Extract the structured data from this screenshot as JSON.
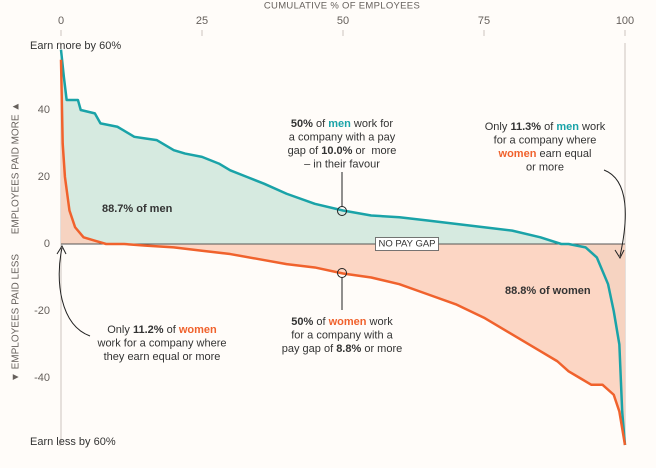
{
  "chart_data": {
    "type": "line",
    "x_label": "CUMULATIVE % OF EMPLOYEES",
    "y_label_up": "EMPLOYEES PAID MORE ▲",
    "y_label_down": "▼ EMPLOYEES PAID LESS",
    "xlim": [
      0,
      100
    ],
    "xticks": [
      0,
      25,
      50,
      75,
      100
    ],
    "ylim": [
      -60,
      60
    ],
    "yticks": [
      {
        "value": 60,
        "label": "Earn more by 60%"
      },
      40,
      20,
      0,
      -20,
      -40,
      {
        "value": -60,
        "label": "Earn less by 60%"
      }
    ],
    "zero_label": "NO PAY GAP",
    "series": [
      {
        "name": "men",
        "color": "#1aa3a8",
        "fill": "#cfe6dc",
        "x": [
          0,
          0.5,
          1,
          3,
          3.5,
          6,
          7,
          10,
          11,
          13,
          15,
          17,
          20,
          22,
          25,
          28,
          30,
          33,
          36,
          40,
          45,
          50,
          55,
          60,
          65,
          70,
          75,
          80,
          85,
          88.7,
          90,
          93,
          95,
          97,
          98,
          99,
          99.5,
          100
        ],
        "values": [
          58,
          50,
          43,
          43,
          40,
          39,
          36,
          35,
          34,
          32,
          31.5,
          31,
          28,
          27,
          26,
          24,
          22,
          20,
          18,
          15,
          12,
          10,
          8.5,
          8,
          7,
          6,
          5,
          4,
          2,
          0,
          0,
          -1,
          -4,
          -12,
          -20,
          -30,
          -50,
          -60
        ]
      },
      {
        "name": "women",
        "color": "#f0622d",
        "fill": "#fbcfbb",
        "x": [
          0,
          0.3,
          0.7,
          1.5,
          2.5,
          4,
          6,
          8,
          11.2,
          15,
          20,
          25,
          30,
          35,
          40,
          45,
          50,
          55,
          60,
          65,
          70,
          75,
          80,
          85,
          88,
          90,
          92,
          94,
          96,
          98,
          99,
          99.5,
          100
        ],
        "values": [
          55,
          30,
          20,
          10,
          5,
          2,
          1,
          0,
          0,
          -0.5,
          -1,
          -2,
          -3,
          -4.5,
          -6,
          -7,
          -8.8,
          -10,
          -12,
          -15,
          -18,
          -22,
          -27,
          -32,
          -35,
          -38,
          -40,
          -42,
          -42,
          -45,
          -50,
          -55,
          -60
        ]
      }
    ],
    "area_labels": [
      "88.7% of men",
      "88.8% of women"
    ],
    "annotations": [
      {
        "lines": [
          [
            "50%",
            " of ",
            "men",
            " work for"
          ],
          [
            "a company with a pay"
          ],
          [
            "gap of ",
            "10.0%",
            " or  more"
          ],
          [
            "– in their favour"
          ]
        ]
      },
      {
        "lines": [
          [
            "Only ",
            "11.3%",
            " of ",
            "men",
            " work"
          ],
          [
            "for a company where"
          ],
          [
            "women",
            " earn equal"
          ],
          [
            "or more"
          ]
        ]
      },
      {
        "lines": [
          [
            "Only ",
            "11.2%",
            " of ",
            "women"
          ],
          [
            "work for a company where"
          ],
          [
            "they earn equal or more"
          ]
        ]
      },
      {
        "lines": [
          [
            "50%",
            " of ",
            "women",
            " work"
          ],
          [
            "for a company with a"
          ],
          [
            "pay gap of ",
            "8.8%",
            " or more"
          ]
        ]
      }
    ]
  }
}
